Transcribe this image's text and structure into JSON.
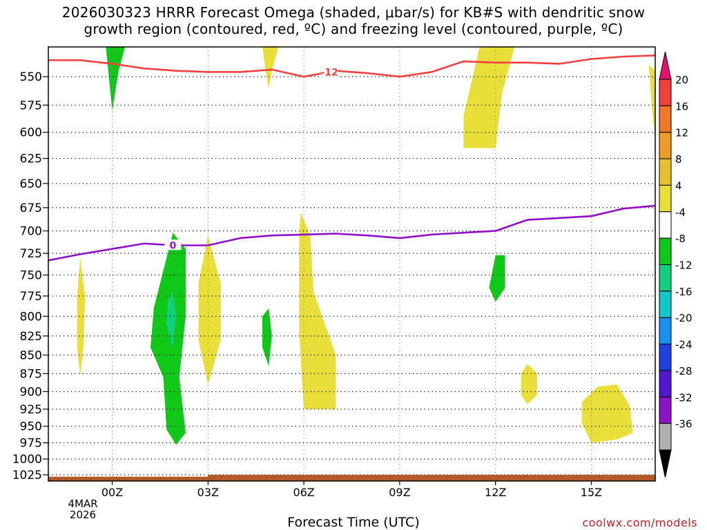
{
  "title": {
    "line1": "2026030323 HRRR Forecast Omega (shaded, μbar/s) for KB#S with dendritic snow",
    "line2": "growth region (contoured, red, ºC) and freezing level (contoured, purple, ºC)"
  },
  "xlabel": "Forecast Time (UTC)",
  "credit": "coolwx.com/models",
  "start_date": {
    "day": "4MAR",
    "year": "2026"
  },
  "chart_data": {
    "type": "time-height contour",
    "title": "2026030323 HRRR Forecast Omega (shaded, μbar/s) for KB#S with dendritic snow growth region (contoured, red, ºC) and freezing level (contoured, purple, ºC)",
    "xlabel": "Forecast Time (UTC)",
    "ylabel": "",
    "x_axis": {
      "unit": "hours after 2026030323",
      "range": [
        -1,
        18
      ],
      "ticks": [
        1,
        4,
        7,
        10,
        13,
        16
      ],
      "tick_labels": [
        "00Z",
        "03Z",
        "06Z",
        "09Z",
        "12Z",
        "15Z"
      ]
    },
    "y_axis": {
      "unit": "hPa",
      "range": [
        1035,
        525
      ],
      "scale": "log",
      "ticks": [
        550,
        575,
        600,
        625,
        650,
        675,
        700,
        725,
        750,
        775,
        800,
        825,
        850,
        875,
        900,
        925,
        950,
        975,
        1000,
        1025
      ]
    },
    "colorbar": {
      "labels": [
        20,
        16,
        12,
        8,
        4,
        -4,
        -8,
        -12,
        -16,
        -20,
        -24,
        -28,
        -32,
        -36
      ],
      "colors": [
        "#e8106a",
        "#f2403c",
        "#f07828",
        "#ee9c22",
        "#e8c02e",
        "#e8e038",
        "#ffffff",
        "#10c818",
        "#10d080",
        "#10c8c8",
        "#1890f0",
        "#2040e0",
        "#5018d0",
        "#8e12c6",
        "#b0b0b0",
        "#000000"
      ]
    },
    "isotherms": [
      {
        "name": "dendritic -12 C",
        "label": "-12",
        "color": "#f04040",
        "points": [
          [
            -1,
            536
          ],
          [
            0,
            536
          ],
          [
            1,
            539
          ],
          [
            2,
            543
          ],
          [
            3,
            545
          ],
          [
            4,
            546
          ],
          [
            5,
            546
          ],
          [
            6,
            544
          ],
          [
            7,
            550
          ],
          [
            8,
            545
          ],
          [
            9,
            547
          ],
          [
            10,
            550
          ],
          [
            11,
            546
          ],
          [
            12,
            537
          ],
          [
            13,
            538
          ],
          [
            14,
            538
          ],
          [
            15,
            539
          ],
          [
            16,
            535
          ],
          [
            17,
            533
          ],
          [
            18,
            532
          ]
        ]
      },
      {
        "name": "freezing level 0 C",
        "label": "0",
        "color": "#9010c8",
        "points": [
          [
            -1,
            733
          ],
          [
            0,
            726
          ],
          [
            1,
            720
          ],
          [
            2,
            714
          ],
          [
            3,
            716
          ],
          [
            4,
            716
          ],
          [
            5,
            708
          ],
          [
            6,
            705
          ],
          [
            7,
            704
          ],
          [
            8,
            703
          ],
          [
            9,
            705
          ],
          [
            10,
            708
          ],
          [
            11,
            704
          ],
          [
            12,
            702
          ],
          [
            13,
            700
          ],
          [
            14,
            688
          ],
          [
            15,
            686
          ],
          [
            16,
            684
          ],
          [
            17,
            676
          ],
          [
            18,
            673
          ]
        ]
      }
    ],
    "omega_areas": [
      {
        "sign": "up",
        "range": "-8 to -4",
        "color": "#10c818",
        "points": [
          [
            0.8,
            525
          ],
          [
            1.4,
            525
          ],
          [
            1.2,
            545
          ],
          [
            1.0,
            580
          ]
        ]
      },
      {
        "sign": "up",
        "range": "-8 to -4",
        "color": "#10c818",
        "points": [
          [
            2.9,
            702
          ],
          [
            3.3,
            720
          ],
          [
            3.3,
            800
          ],
          [
            3.1,
            880
          ],
          [
            3.3,
            960
          ],
          [
            3.0,
            978
          ],
          [
            2.7,
            955
          ],
          [
            2.6,
            880
          ],
          [
            2.2,
            840
          ],
          [
            2.3,
            790
          ],
          [
            2.6,
            745
          ]
        ]
      },
      {
        "sign": "up",
        "range": "-12 to -8",
        "color": "#10d080",
        "points": [
          [
            2.9,
            770
          ],
          [
            3.0,
            800
          ],
          [
            2.9,
            840
          ],
          [
            2.7,
            810
          ],
          [
            2.75,
            780
          ]
        ]
      },
      {
        "sign": "up",
        "range": "-8 to -4",
        "color": "#10c818",
        "points": [
          [
            5.9,
            790
          ],
          [
            6.0,
            825
          ],
          [
            5.9,
            865
          ],
          [
            5.7,
            840
          ],
          [
            5.7,
            800
          ]
        ]
      },
      {
        "sign": "up",
        "range": "-8 to -4",
        "color": "#10c818",
        "points": [
          [
            13.0,
            727
          ],
          [
            13.3,
            727
          ],
          [
            13.3,
            765
          ],
          [
            13.0,
            782
          ],
          [
            12.8,
            765
          ]
        ]
      },
      {
        "sign": "down",
        "range": "4 to 8",
        "color": "#e8e038",
        "points": [
          [
            5.7,
            525
          ],
          [
            6.2,
            525
          ],
          [
            6.0,
            545
          ],
          [
            5.9,
            560
          ],
          [
            5.8,
            545
          ]
        ]
      },
      {
        "sign": "down",
        "range": "4 to 8",
        "color": "#e8e038",
        "points": [
          [
            12.5,
            525
          ],
          [
            13.6,
            525
          ],
          [
            13.2,
            565
          ],
          [
            13.0,
            615
          ],
          [
            12.0,
            615
          ],
          [
            12.0,
            585
          ]
        ]
      },
      {
        "sign": "down",
        "range": "4 to 8",
        "color": "#e8e038",
        "points": [
          [
            17.8,
            540
          ],
          [
            18.0,
            545
          ],
          [
            18.0,
            608
          ],
          [
            17.9,
            580
          ]
        ]
      },
      {
        "sign": "down",
        "range": "4 to 8",
        "color": "#e8e038",
        "points": [
          [
            0.0,
            730
          ],
          [
            0.15,
            775
          ],
          [
            0.1,
            840
          ],
          [
            0.0,
            878
          ],
          [
            -0.1,
            840
          ],
          [
            -0.1,
            775
          ]
        ]
      },
      {
        "sign": "down",
        "range": "4 to 8",
        "color": "#e8e038",
        "points": [
          [
            4.0,
            705
          ],
          [
            4.4,
            760
          ],
          [
            4.4,
            830
          ],
          [
            4.0,
            890
          ],
          [
            3.7,
            830
          ],
          [
            3.7,
            760
          ]
        ]
      },
      {
        "sign": "down",
        "range": "4 to 8",
        "color": "#e8e038",
        "points": [
          [
            6.9,
            680
          ],
          [
            7.2,
            705
          ],
          [
            7.3,
            770
          ],
          [
            8.0,
            850
          ],
          [
            8.0,
            925
          ],
          [
            7.0,
            925
          ],
          [
            6.85,
            820
          ],
          [
            6.85,
            705
          ]
        ]
      },
      {
        "sign": "down",
        "range": "4 to 8",
        "color": "#e8e038",
        "points": [
          [
            14.0,
            862
          ],
          [
            14.3,
            875
          ],
          [
            14.3,
            905
          ],
          [
            14.0,
            918
          ],
          [
            13.8,
            905
          ],
          [
            13.8,
            875
          ]
        ]
      },
      {
        "sign": "down",
        "range": "4 to 8",
        "color": "#e8e038",
        "points": [
          [
            16.2,
            893
          ],
          [
            16.8,
            890
          ],
          [
            17.2,
            920
          ],
          [
            17.3,
            960
          ],
          [
            16.8,
            970
          ],
          [
            16.0,
            975
          ],
          [
            15.7,
            945
          ],
          [
            15.7,
            915
          ]
        ]
      }
    ],
    "ground": {
      "color": "#b45a28",
      "points": [
        [
          -1,
          1028
        ],
        [
          4,
          1028
        ],
        [
          4,
          1025
        ],
        [
          18,
          1025
        ],
        [
          18,
          1035
        ],
        [
          -1,
          1035
        ]
      ]
    }
  }
}
